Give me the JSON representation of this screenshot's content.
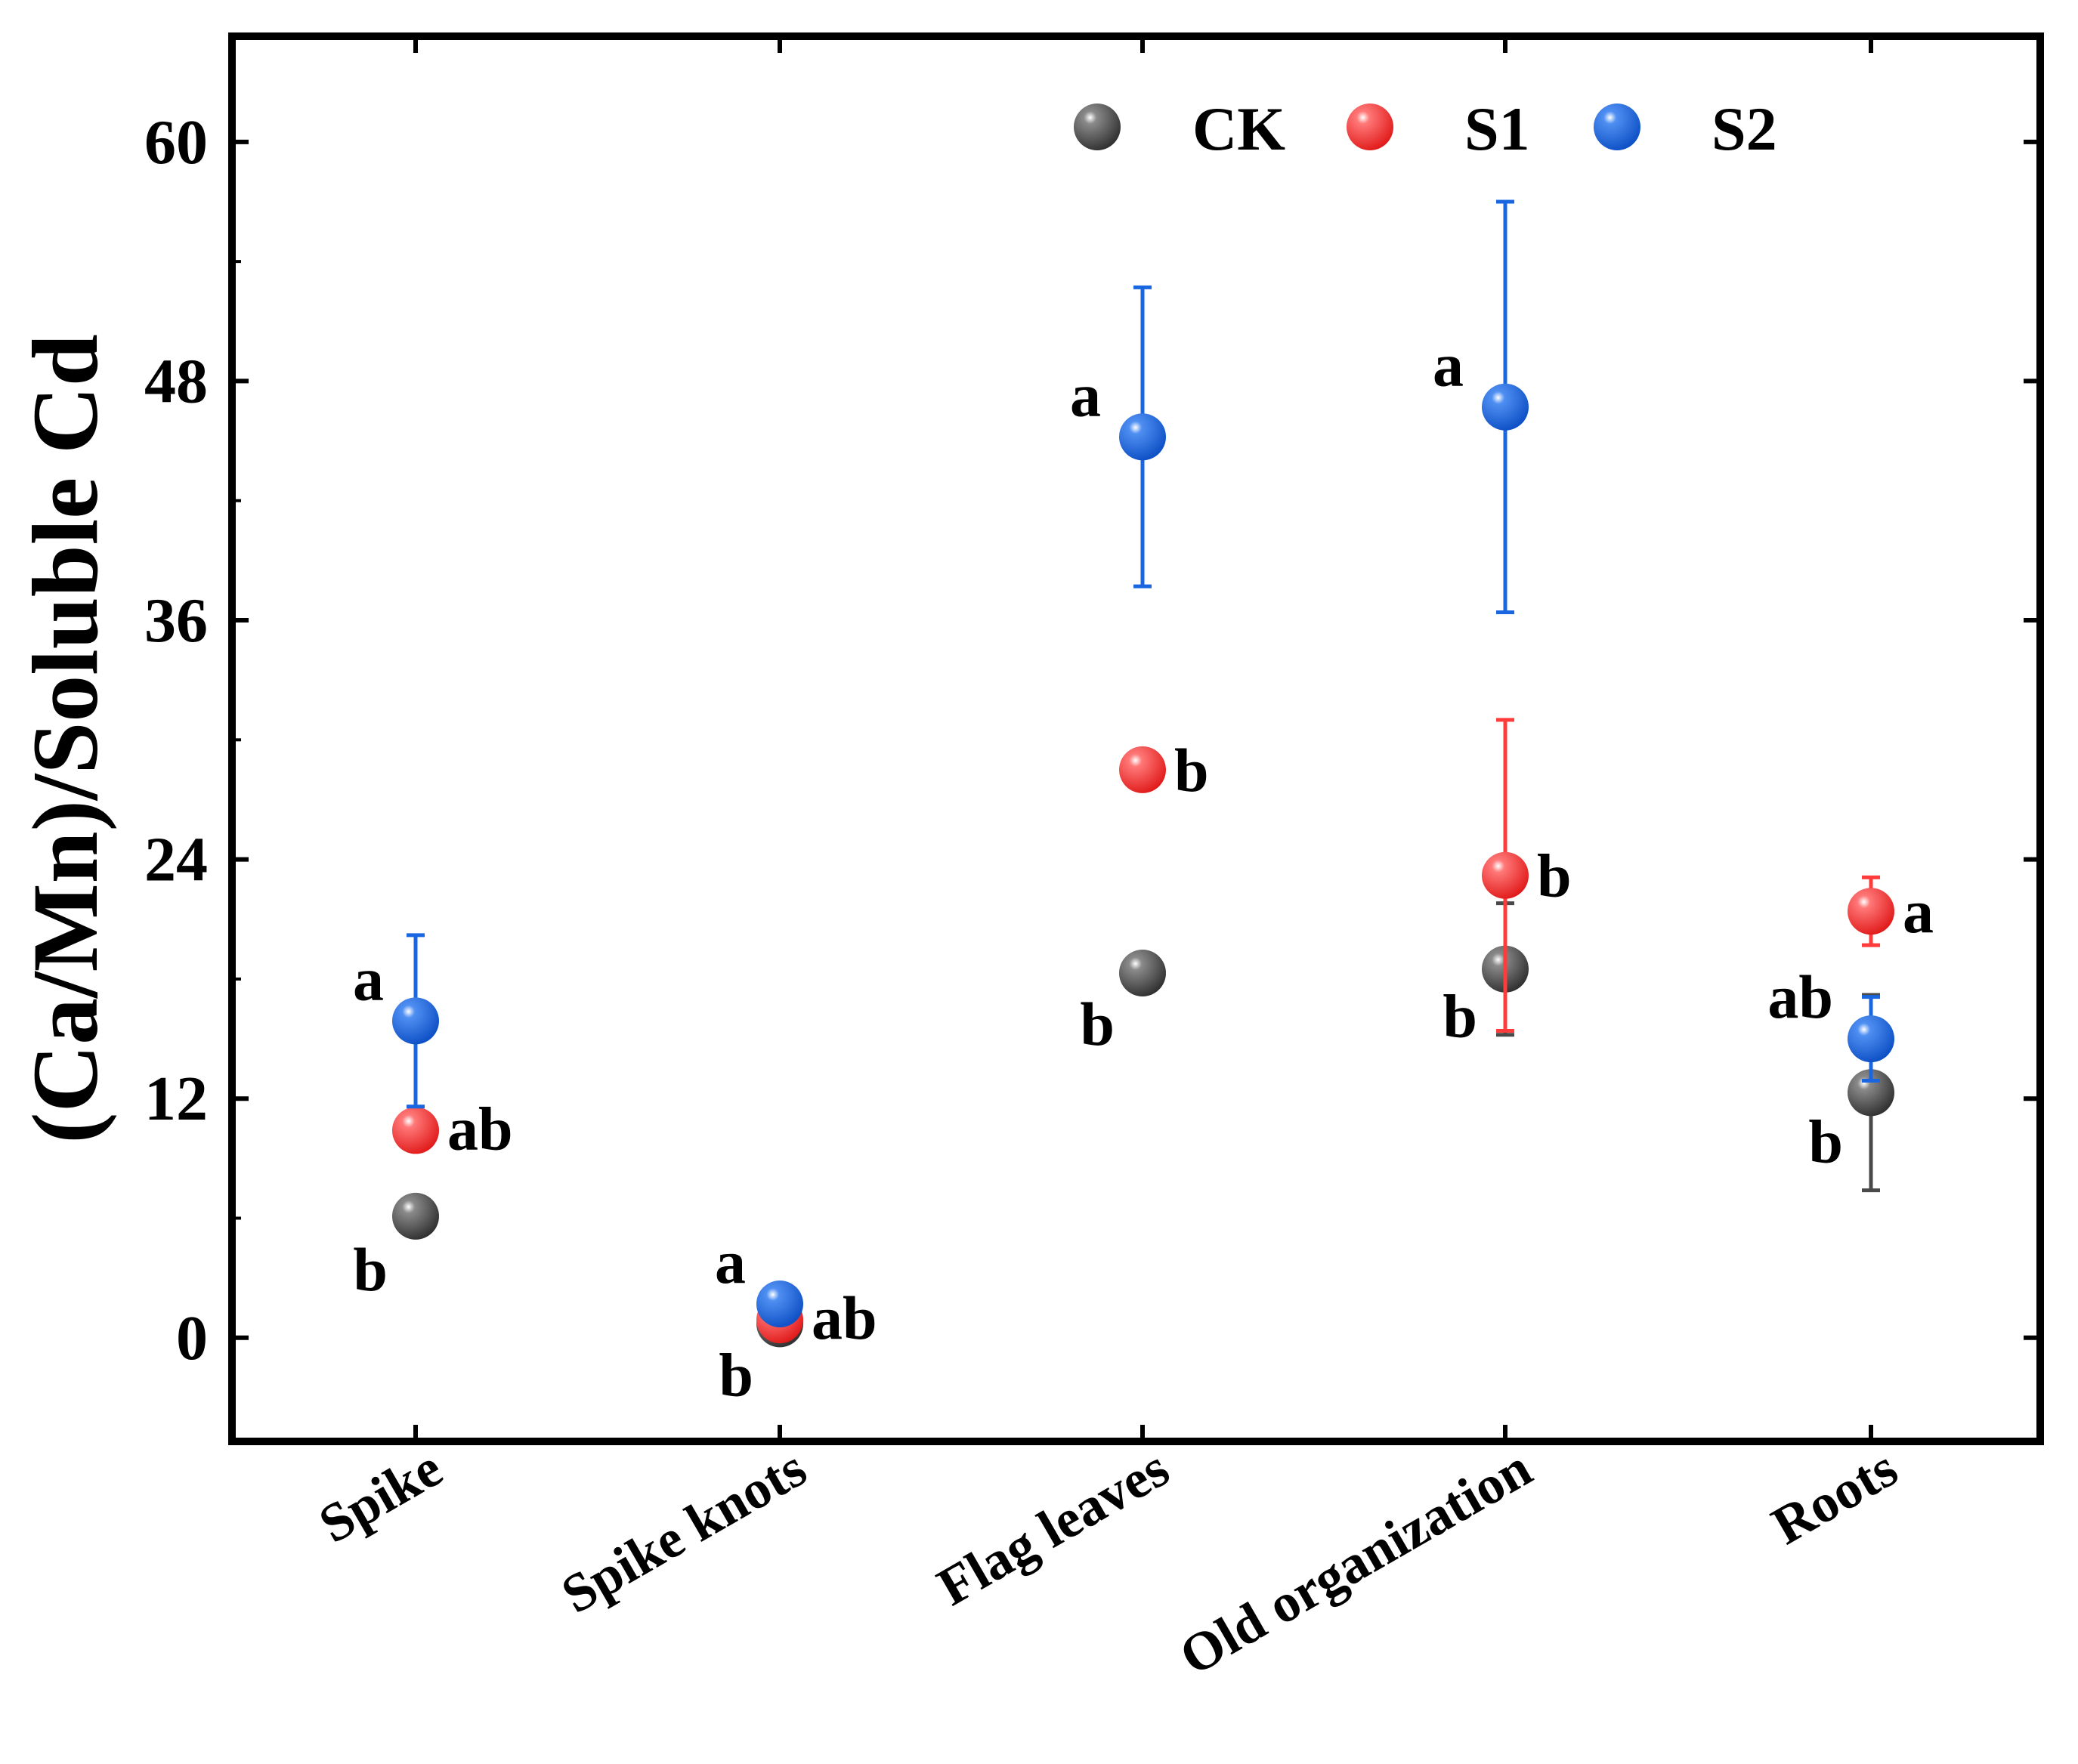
{
  "chart_data": {
    "type": "scatter",
    "title": "",
    "xlabel": "",
    "ylabel": "(Ca/Mn)/Soluble Cd",
    "ylim": [
      -5.2,
      65.3
    ],
    "yticks": [
      0,
      12,
      24,
      36,
      48,
      60
    ],
    "ytick_labels": [
      "0",
      "12",
      "24",
      "36",
      "48",
      "60"
    ],
    "categories": [
      "Spike",
      "Spike knots",
      "Flag leaves",
      "Old organization",
      "Roots"
    ],
    "grid": false,
    "legend_position": "top-right",
    "colors": {
      "CK": "#4a4a4a",
      "S1": "#ff3b3b",
      "S2": "#1a66e0"
    },
    "series": [
      {
        "name": "CK",
        "values": [
          6.1,
          0.7,
          18.3,
          18.5,
          12.3
        ],
        "errors": [
          0.3,
          0.2,
          0.5,
          3.3,
          4.9
        ],
        "letters": [
          "b",
          "b",
          "b",
          "b",
          "b"
        ]
      },
      {
        "name": "S1",
        "values": [
          10.4,
          0.9,
          28.5,
          23.2,
          21.4
        ],
        "errors": [
          0.5,
          0.4,
          0.6,
          7.8,
          1.7
        ],
        "letters": [
          "ab",
          "ab",
          "b",
          "b",
          "a"
        ]
      },
      {
        "name": "S2",
        "values": [
          15.9,
          1.7,
          45.2,
          46.7,
          15.0
        ],
        "errors": [
          4.3,
          0.3,
          7.5,
          10.3,
          2.1
        ],
        "letters": [
          "a",
          "a",
          "a",
          "a",
          "ab"
        ]
      }
    ]
  }
}
